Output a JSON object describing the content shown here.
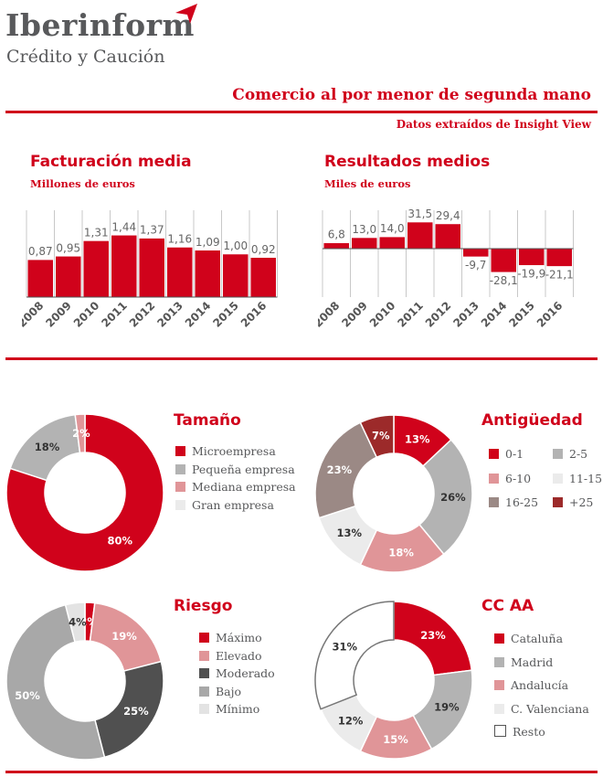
{
  "header": {
    "logo_main": "Iberinform",
    "logo_sub": "Crédito y Caución",
    "title": "Comercio al por menor de segunda mano",
    "source": "Datos extraídos de Insight View"
  },
  "colors": {
    "accent": "#d0021b",
    "text": "#58595b",
    "bar": "#d0021b",
    "grey_mid": "#b3b3b3",
    "pink": "#e09598",
    "light_grey": "#ebebeb",
    "brown_grey": "#9b8985",
    "dark_red": "#9c2a2a",
    "dark_grey": "#505050"
  },
  "chart_data": [
    {
      "type": "bar",
      "title": "Facturación media",
      "subtitle": "Millones de euros",
      "categories": [
        "2008",
        "2009",
        "2010",
        "2011",
        "2012",
        "2013",
        "2014",
        "2015",
        "2016"
      ],
      "values": [
        0.87,
        0.95,
        1.31,
        1.44,
        1.37,
        1.16,
        1.09,
        1.0,
        0.92
      ],
      "labels": [
        "0,87",
        "0,95",
        "1,31",
        "1,44",
        "1,37",
        "1,16",
        "1,09",
        "1,00",
        "0,92"
      ],
      "ylim": [
        0,
        2.0
      ]
    },
    {
      "type": "bar",
      "title": "Resultados medios",
      "subtitle": "Miles de euros",
      "categories": [
        "2008",
        "2009",
        "2010",
        "2011",
        "2012",
        "2013",
        "2014",
        "2015",
        "2016"
      ],
      "values": [
        6.8,
        13.0,
        14.0,
        31.5,
        29.4,
        -9.7,
        -28.1,
        -19.9,
        -21.1
      ],
      "labels": [
        "6,8",
        "13,0",
        "14,0",
        "31,5",
        "29,4",
        "-9,7",
        "-28,1",
        "-19,9",
        "-21,1"
      ],
      "ylim": [
        -35,
        45
      ]
    },
    {
      "type": "pie",
      "title": "Tamaño",
      "labels": [
        "Microempresa",
        "Pequeña empresa",
        "Mediana empresa",
        "Gran empresa"
      ],
      "values": [
        80,
        18,
        2,
        0
      ],
      "pct_labels": [
        "80%",
        "18%",
        "2%",
        ""
      ],
      "colors": [
        "#d0021b",
        "#b3b3b3",
        "#e09598",
        "#ebebeb"
      ]
    },
    {
      "type": "pie",
      "title": "Antigüedad",
      "labels": [
        "0-1",
        "2-5",
        "6-10",
        "11-15",
        "16-25",
        "+25"
      ],
      "values": [
        13,
        26,
        18,
        13,
        23,
        7
      ],
      "pct_labels": [
        "13%",
        "26%",
        "18%",
        "13%",
        "23%",
        "7%"
      ],
      "colors": [
        "#d0021b",
        "#b3b3b3",
        "#e09598",
        "#ebebeb",
        "#9b8985",
        "#9c2a2a"
      ]
    },
    {
      "type": "pie",
      "title": "Riesgo",
      "labels": [
        "Máximo",
        "Elevado",
        "Moderado",
        "Bajo",
        "Mínimo"
      ],
      "values": [
        2,
        19,
        25,
        50,
        4
      ],
      "pct_labels": [
        "2%",
        "19%",
        "25%",
        "50%",
        "4%"
      ],
      "colors": [
        "#d0021b",
        "#e09598",
        "#505050",
        "#a8a8a8",
        "#e3e3e3"
      ]
    },
    {
      "type": "pie",
      "title": "CC AA",
      "labels": [
        "Cataluña",
        "Madrid",
        "Andalucía",
        "C. Valenciana",
        "Resto"
      ],
      "values": [
        23,
        19,
        15,
        12,
        31
      ],
      "pct_labels": [
        "23%",
        "19%",
        "15%",
        "12%",
        "31%"
      ],
      "colors": [
        "#d0021b",
        "#b3b3b3",
        "#e09598",
        "#ebebeb",
        "#ffffff"
      ]
    }
  ]
}
